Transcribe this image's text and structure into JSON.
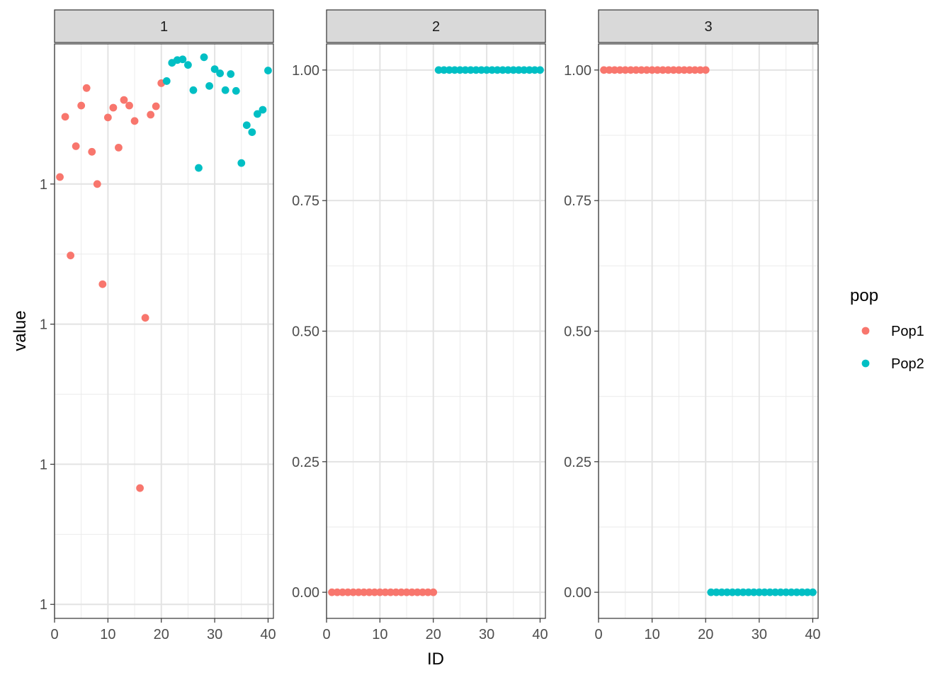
{
  "chart_data": {
    "type": "scatter",
    "facet_layout": "1 row x 3 columns, free y scales",
    "xlabel": "ID",
    "ylabel": "value",
    "xlim": [
      0,
      41
    ],
    "x_ticks": [
      "0",
      "10",
      "20",
      "30",
      "40"
    ],
    "grid": true,
    "legend": {
      "title": "pop",
      "position": "right",
      "entries": [
        {
          "name": "Pop1",
          "color": "#F8766D"
        },
        {
          "name": "Pop2",
          "color": "#00BFC4"
        }
      ]
    },
    "panels": [
      {
        "strip": "1",
        "ylim": [
          0.998,
          1.0062
        ],
        "y_tick_labels": [
          "1",
          "1",
          "1",
          "1"
        ],
        "y_tick_values": [
          0.9982,
          1.0002,
          1.0022,
          1.0042
        ],
        "series": [
          {
            "name": "Pop1",
            "x": [
              1,
              2,
              3,
              4,
              5,
              6,
              7,
              8,
              9,
              10,
              11,
              12,
              13,
              14,
              15,
              16,
              17,
              18,
              19,
              20
            ],
            "y": [
              1.0043,
              1.00516,
              1.00318,
              1.00474,
              1.00532,
              1.00557,
              1.00466,
              1.0042,
              1.00277,
              1.00515,
              1.00529,
              1.00472,
              1.0054,
              1.00532,
              1.0051,
              0.99986,
              1.00229,
              1.00519,
              1.00531,
              1.00564
            ]
          },
          {
            "name": "Pop2",
            "x": [
              21,
              22,
              23,
              24,
              25,
              26,
              27,
              28,
              29,
              30,
              31,
              32,
              33,
              34,
              35,
              36,
              37,
              38,
              39,
              40
            ],
            "y": [
              1.00567,
              1.00593,
              1.00597,
              1.00598,
              1.0059,
              1.00554,
              1.00443,
              1.00601,
              1.0056,
              1.00584,
              1.00578,
              1.00554,
              1.00577,
              1.00553,
              1.0045,
              1.00504,
              1.00494,
              1.0052,
              1.00526,
              1.00582
            ]
          }
        ]
      },
      {
        "strip": "2",
        "ylim": [
          -0.05,
          1.05
        ],
        "y_tick_labels": [
          "0.00",
          "0.25",
          "0.50",
          "0.75",
          "1.00"
        ],
        "y_tick_values": [
          0,
          0.25,
          0.5,
          0.75,
          1
        ],
        "series": [
          {
            "name": "Pop1",
            "x": [
              1,
              2,
              3,
              4,
              5,
              6,
              7,
              8,
              9,
              10,
              11,
              12,
              13,
              14,
              15,
              16,
              17,
              18,
              19,
              20
            ],
            "y": [
              0,
              0,
              0,
              0,
              0,
              0,
              0,
              0,
              0,
              0,
              0,
              0,
              0,
              0,
              0,
              0,
              0,
              0,
              0,
              0
            ]
          },
          {
            "name": "Pop2",
            "x": [
              21,
              22,
              23,
              24,
              25,
              26,
              27,
              28,
              29,
              30,
              31,
              32,
              33,
              34,
              35,
              36,
              37,
              38,
              39,
              40
            ],
            "y": [
              1,
              1,
              1,
              1,
              1,
              1,
              1,
              1,
              1,
              1,
              1,
              1,
              1,
              1,
              1,
              1,
              1,
              1,
              1,
              1
            ]
          }
        ]
      },
      {
        "strip": "3",
        "ylim": [
          -0.05,
          1.05
        ],
        "y_tick_labels": [
          "0.00",
          "0.25",
          "0.50",
          "0.75",
          "1.00"
        ],
        "y_tick_values": [
          0,
          0.25,
          0.5,
          0.75,
          1
        ],
        "series": [
          {
            "name": "Pop1",
            "x": [
              1,
              2,
              3,
              4,
              5,
              6,
              7,
              8,
              9,
              10,
              11,
              12,
              13,
              14,
              15,
              16,
              17,
              18,
              19,
              20
            ],
            "y": [
              1,
              1,
              1,
              1,
              1,
              1,
              1,
              1,
              1,
              1,
              1,
              1,
              1,
              1,
              1,
              1,
              1,
              1,
              1,
              1
            ]
          },
          {
            "name": "Pop2",
            "x": [
              21,
              22,
              23,
              24,
              25,
              26,
              27,
              28,
              29,
              30,
              31,
              32,
              33,
              34,
              35,
              36,
              37,
              38,
              39,
              40
            ],
            "y": [
              0,
              0,
              0,
              0,
              0,
              0,
              0,
              0,
              0,
              0,
              0,
              0,
              0,
              0,
              0,
              0,
              0,
              0,
              0,
              0
            ]
          }
        ]
      }
    ]
  }
}
